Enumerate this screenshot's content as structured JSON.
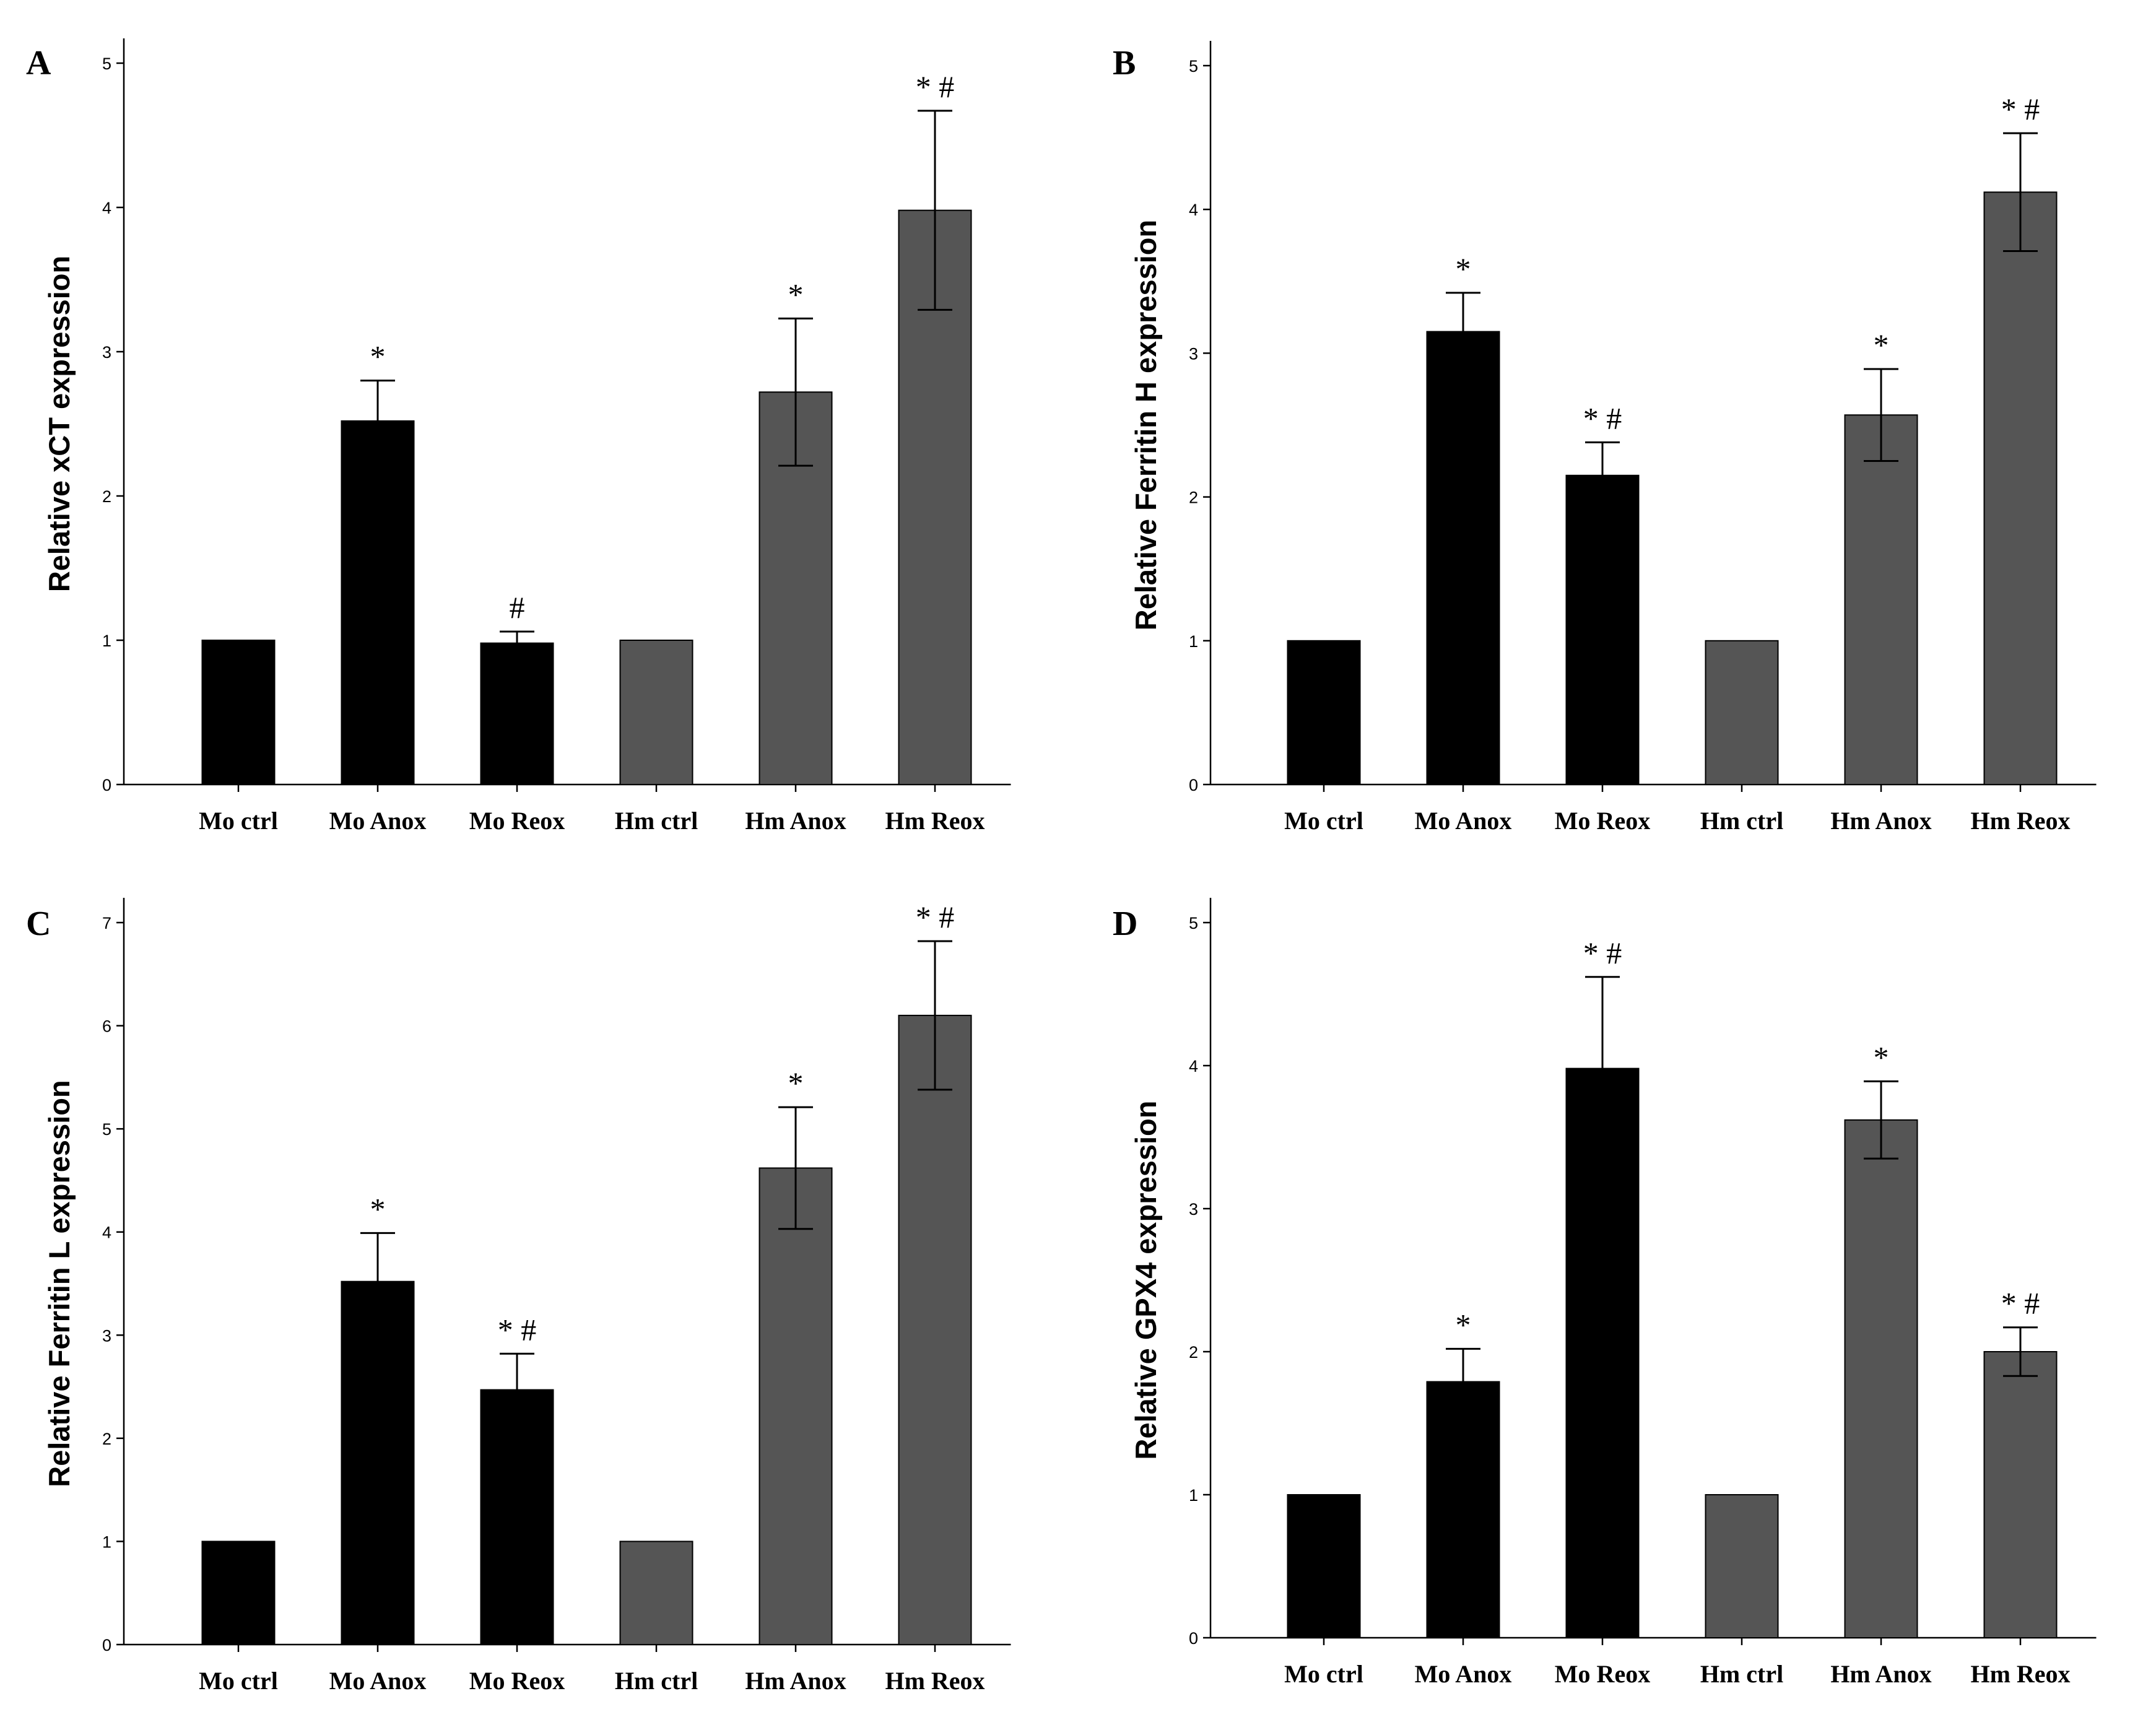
{
  "chart_data": [
    {
      "panel": "A",
      "type": "bar",
      "categories": [
        "Mo ctrl",
        "Mo Anox",
        "Mo Reox",
        "Hm ctrl",
        "Hm Anox",
        "Hm Reox"
      ],
      "values": [
        1.0,
        2.52,
        0.98,
        1.0,
        2.72,
        3.98
      ],
      "errors": [
        0.0,
        0.28,
        0.08,
        0.0,
        0.51,
        0.69
      ],
      "significance": [
        "",
        "*",
        "#",
        "",
        "*",
        "* #"
      ],
      "bar_colors": [
        "#000000",
        "#000000",
        "#000000",
        "#555555",
        "#555555",
        "#555555"
      ],
      "ylabel": "Relative xCT expression",
      "ylim": [
        0,
        5
      ],
      "yticks": [
        "0",
        "1",
        "2",
        "3",
        "4",
        "5"
      ]
    },
    {
      "panel": "B",
      "type": "bar",
      "categories": [
        "Mo ctrl",
        "Mo Anox",
        "Mo Reox",
        "Hm ctrl",
        "Hm Anox",
        "Hm Reox"
      ],
      "values": [
        1.0,
        3.15,
        2.15,
        1.0,
        2.57,
        4.12
      ],
      "errors": [
        0.0,
        0.27,
        0.23,
        0.0,
        0.32,
        0.41
      ],
      "significance": [
        "",
        "*",
        "* #",
        "",
        "*",
        "* #"
      ],
      "bar_colors": [
        "#000000",
        "#000000",
        "#000000",
        "#555555",
        "#555555",
        "#555555"
      ],
      "ylabel": "Relative Ferritin H expression",
      "ylim": [
        0,
        5
      ],
      "yticks": [
        "0",
        "1",
        "2",
        "3",
        "4",
        "5"
      ]
    },
    {
      "panel": "C",
      "type": "bar",
      "categories": [
        "Mo ctrl",
        "Mo Anox",
        "Mo Reox",
        "Hm ctrl",
        "Hm Anox",
        "Hm Reox"
      ],
      "values": [
        1.0,
        3.52,
        2.47,
        1.0,
        4.62,
        6.1
      ],
      "errors": [
        0.0,
        0.47,
        0.35,
        0.0,
        0.59,
        0.72
      ],
      "significance": [
        "",
        "*",
        "* #",
        "",
        "*",
        "* #"
      ],
      "bar_colors": [
        "#000000",
        "#000000",
        "#000000",
        "#555555",
        "#555555",
        "#555555"
      ],
      "ylabel": "Relative Ferritin L expression",
      "ylim": [
        0,
        7
      ],
      "yticks": [
        "0",
        "1",
        "2",
        "3",
        "4",
        "5",
        "6",
        "7"
      ]
    },
    {
      "panel": "D",
      "type": "bar",
      "categories": [
        "Mo ctrl",
        "Mo Anox",
        "Mo Reox",
        "Hm ctrl",
        "Hm Anox",
        "Hm Reox"
      ],
      "values": [
        1.0,
        1.79,
        3.98,
        1.0,
        3.62,
        2.0
      ],
      "errors": [
        0.0,
        0.23,
        0.64,
        0.0,
        0.27,
        0.17
      ],
      "significance": [
        "",
        "*",
        "* #",
        "",
        "*",
        "* #"
      ],
      "bar_colors": [
        "#000000",
        "#000000",
        "#000000",
        "#555555",
        "#555555",
        "#555555"
      ],
      "ylabel": "Relative GPX4 expression",
      "ylim": [
        0,
        5
      ],
      "yticks": [
        "0",
        "1",
        "2",
        "3",
        "4",
        "5"
      ]
    }
  ]
}
